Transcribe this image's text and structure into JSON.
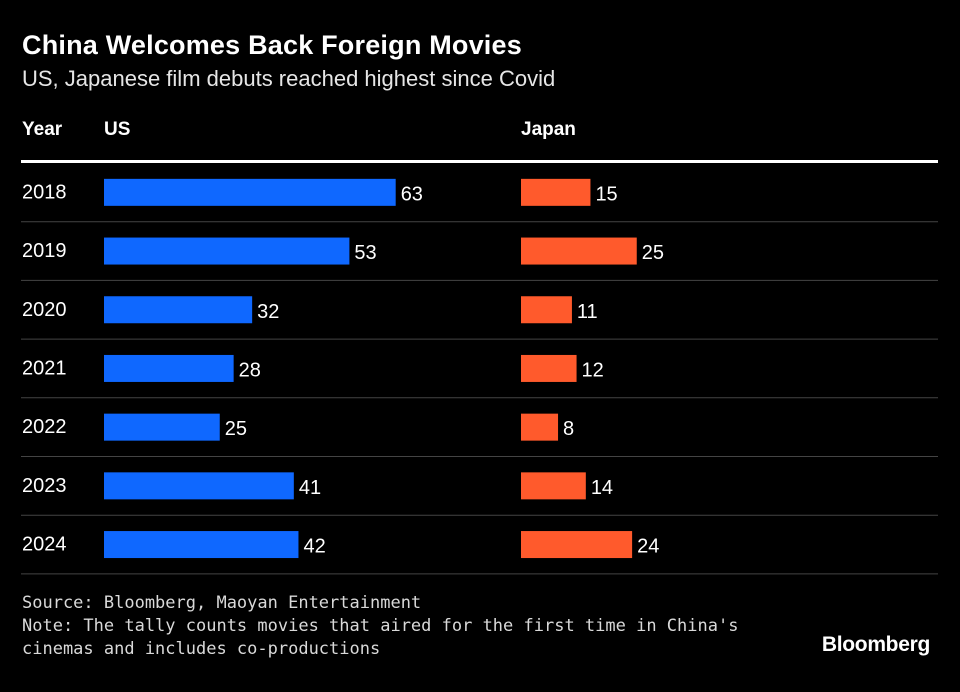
{
  "chart_data": {
    "type": "bar",
    "title": "China Welcomes Back Foreign Movies",
    "subtitle": "US, Japanese film debuts reached highest since Covid",
    "header": {
      "year": "Year"
    },
    "categories": [
      "2018",
      "2019",
      "2020",
      "2021",
      "2022",
      "2023",
      "2024"
    ],
    "series": [
      {
        "name": "US",
        "color": "#0f68ff",
        "values": [
          63,
          53,
          32,
          28,
          25,
          41,
          42
        ]
      },
      {
        "name": "Japan",
        "color": "#ff5a2c",
        "values": [
          15,
          25,
          11,
          12,
          8,
          14,
          24
        ]
      }
    ]
  },
  "footer": {
    "source": "Source: Bloomberg, Maoyan Entertainment",
    "note_line1": "Note: The tally counts movies that aired for the first time in China's",
    "note_line2": "cinemas and includes co-productions",
    "brand": "Bloomberg"
  }
}
